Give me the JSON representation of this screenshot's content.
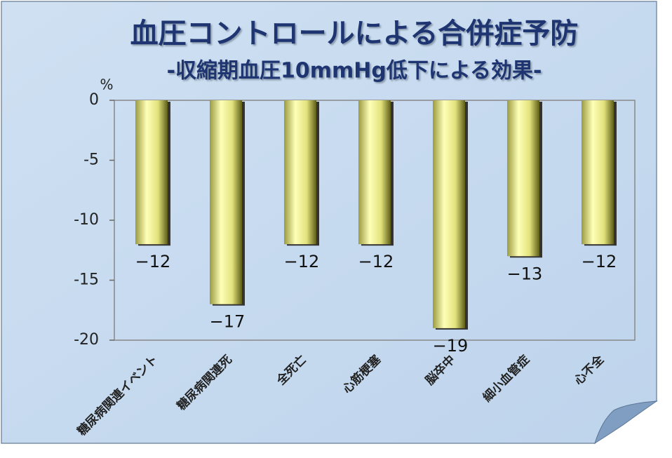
{
  "chart_data": {
    "type": "bar",
    "title": "血圧コントロールによる合併症予防",
    "subtitle": "-収縮期血圧10mmHg低下による効果-",
    "y_label": "%",
    "categories": [
      "糖尿病関連イベント",
      "糖尿病関連死",
      "全死亡",
      "心筋梗塞",
      "脳卒中",
      "細小血管症",
      "心不全"
    ],
    "values": [
      -12,
      -17,
      -12,
      -12,
      -19,
      -13,
      -12
    ],
    "value_labels": [
      "−12",
      "−17",
      "−12",
      "−12",
      "−19",
      "−13",
      "−12"
    ],
    "color": "#e8e888",
    "ylim": [
      -20,
      0
    ],
    "yticks": [
      0,
      -5,
      -10,
      -15,
      -20
    ],
    "grid": false
  }
}
